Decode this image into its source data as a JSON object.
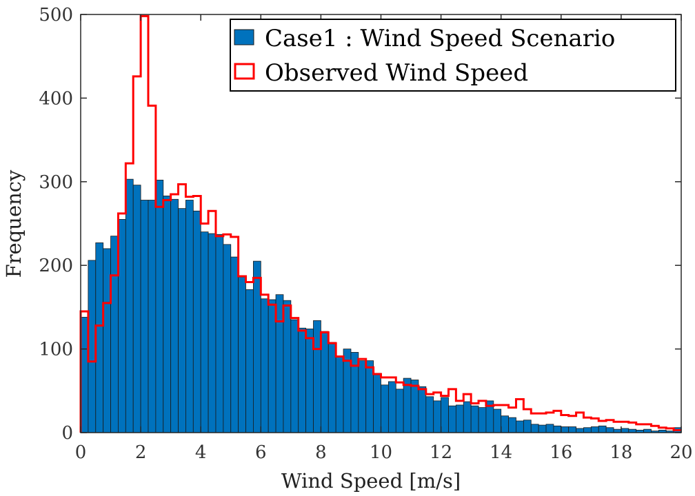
{
  "chart_data": {
    "type": "bar",
    "xlabel": "Wind Speed [m/s]",
    "ylabel": "Frequency",
    "xlim": [
      0,
      20
    ],
    "ylim": [
      0,
      500
    ],
    "xticks": [
      0,
      2,
      4,
      6,
      8,
      10,
      12,
      14,
      16,
      18,
      20
    ],
    "yticks": [
      0,
      100,
      200,
      300,
      400,
      500
    ],
    "bin_width": 0.25,
    "legend_position": "top-right",
    "grid": false,
    "series": [
      {
        "name": "Case1 : Wind Speed Scenario",
        "style": "bars",
        "color": "#0072BD",
        "bin_start": 0,
        "values": [
          138,
          206,
          227,
          220,
          235,
          255,
          303,
          296,
          278,
          278,
          302,
          283,
          279,
          268,
          278,
          265,
          240,
          238,
          237,
          225,
          210,
          186,
          171,
          205,
          160,
          159,
          165,
          158,
          135,
          125,
          124,
          134,
          121,
          108,
          91,
          100,
          96,
          86,
          86,
          71,
          57,
          61,
          52,
          65,
          63,
          55,
          43,
          38,
          42,
          32,
          33,
          37,
          32,
          30,
          38,
          28,
          20,
          18,
          14,
          15,
          10,
          9,
          10,
          8,
          7,
          7,
          5,
          6,
          7,
          8,
          6,
          4,
          5,
          4,
          3,
          4,
          2,
          3,
          2,
          6
        ]
      },
      {
        "name": "Observed Wind Speed",
        "style": "stairs",
        "color": "#FF0000",
        "bin_start": 0,
        "values": [
          145,
          85,
          128,
          155,
          188,
          262,
          322,
          426,
          498,
          391,
          270,
          278,
          285,
          297,
          282,
          283,
          250,
          265,
          235,
          237,
          234,
          187,
          180,
          185,
          165,
          153,
          133,
          152,
          137,
          122,
          113,
          100,
          120,
          107,
          91,
          86,
          80,
          88,
          78,
          70,
          66,
          66,
          60,
          57,
          56,
          52,
          46,
          48,
          44,
          52,
          38,
          46,
          35,
          38,
          32,
          33,
          33,
          30,
          40,
          28,
          23,
          23,
          24,
          26,
          21,
          20,
          24,
          18,
          17,
          14,
          15,
          13,
          13,
          12,
          10,
          10,
          8,
          6,
          5,
          3
        ]
      }
    ]
  }
}
